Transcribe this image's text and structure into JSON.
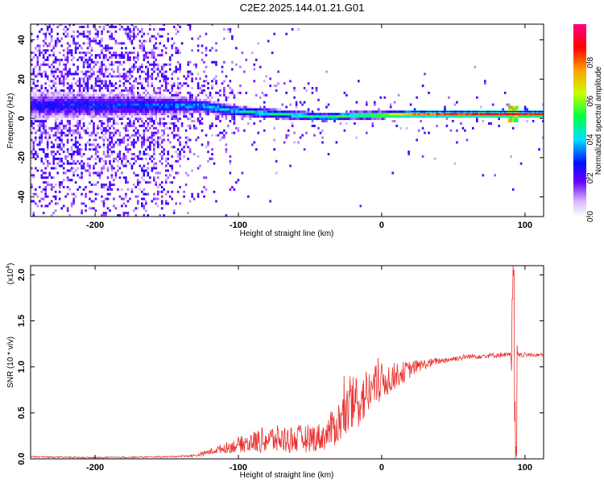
{
  "title": "C2E2.2025.144.01.21.G01",
  "chart_data": [
    {
      "type": "heatmap",
      "xlabel": "Height of straight line (km)",
      "ylabel": "Frequency (Hz)",
      "xlim": [
        -245,
        113
      ],
      "ylim": [
        -50,
        48
      ],
      "xticks": [
        -200,
        -100,
        0,
        100
      ],
      "yticks": [
        -40,
        -20,
        0,
        20,
        40
      ],
      "colorbar": {
        "label": "Normalized spectral amplitude",
        "range": [
          0,
          1
        ],
        "ticks": [
          0.0,
          0.2,
          0.4,
          0.6,
          0.8
        ]
      },
      "ridge": [
        {
          "x": -245,
          "y": 6,
          "spread": 40,
          "amp": 0.28
        },
        {
          "x": -200,
          "y": 6,
          "spread": 36,
          "amp": 0.3
        },
        {
          "x": -160,
          "y": 6,
          "spread": 30,
          "amp": 0.32
        },
        {
          "x": -130,
          "y": 6,
          "spread": 14,
          "amp": 0.4
        },
        {
          "x": -100,
          "y": 3,
          "spread": 8,
          "amp": 0.45
        },
        {
          "x": -80,
          "y": 2,
          "spread": 7,
          "amp": 0.48
        },
        {
          "x": -60,
          "y": 1,
          "spread": 6,
          "amp": 0.5
        },
        {
          "x": -40,
          "y": 0,
          "spread": 4,
          "amp": 0.52
        },
        {
          "x": -20,
          "y": 1,
          "spread": 3,
          "amp": 0.58
        },
        {
          "x": 0,
          "y": 1,
          "spread": 2.5,
          "amp": 0.7
        },
        {
          "x": 20,
          "y": 1.5,
          "spread": 2,
          "amp": 0.8
        },
        {
          "x": 60,
          "y": 1.5,
          "spread": 1.5,
          "amp": 0.9
        },
        {
          "x": 90,
          "y": 1.5,
          "spread": 1.5,
          "amp": 0.95
        },
        {
          "x": 113,
          "y": 1.5,
          "spread": 1.5,
          "amp": 0.9
        }
      ]
    },
    {
      "type": "line",
      "xlabel": "Height of straight line (km)",
      "ylabel": "SNR (10 * v/v)",
      "multiplier": "(x10",
      "multiplier_exp": "4",
      "multiplier_close": ")",
      "xlim": [
        -245,
        113
      ],
      "ylim": [
        0,
        2.1
      ],
      "xticks": [
        -200,
        -100,
        0,
        100
      ],
      "yticks": [
        0.0,
        0.5,
        1.0,
        1.5,
        2.0
      ],
      "color": "#e8312f",
      "series": [
        {
          "envelope": [
            {
              "x": -245,
              "base": 0.02,
              "noise": 0.01
            },
            {
              "x": -200,
              "base": 0.01,
              "noise": 0.01
            },
            {
              "x": -150,
              "base": 0.02,
              "noise": 0.01
            },
            {
              "x": -130,
              "base": 0.03,
              "noise": 0.02
            },
            {
              "x": -115,
              "base": 0.08,
              "noise": 0.06
            },
            {
              "x": -100,
              "base": 0.12,
              "noise": 0.12
            },
            {
              "x": -80,
              "base": 0.15,
              "noise": 0.22
            },
            {
              "x": -60,
              "base": 0.15,
              "noise": 0.22
            },
            {
              "x": -40,
              "base": 0.18,
              "noise": 0.22
            },
            {
              "x": -30,
              "base": 0.3,
              "noise": 0.35
            },
            {
              "x": -20,
              "base": 0.45,
              "noise": 0.45
            },
            {
              "x": -10,
              "base": 0.6,
              "noise": 0.4
            },
            {
              "x": 0,
              "base": 0.75,
              "noise": 0.3
            },
            {
              "x": 10,
              "base": 0.85,
              "noise": 0.2
            },
            {
              "x": 25,
              "base": 0.98,
              "noise": 0.1
            },
            {
              "x": 40,
              "base": 1.05,
              "noise": 0.05
            },
            {
              "x": 60,
              "base": 1.1,
              "noise": 0.04
            },
            {
              "x": 85,
              "base": 1.12,
              "noise": 0.04
            },
            {
              "x": 113,
              "base": 1.12,
              "noise": 0.03
            }
          ],
          "spike_x": 93,
          "spike_values": [
            1.0,
            1.7,
            2.08,
            0.5,
            0.02,
            1.2
          ]
        }
      ]
    }
  ]
}
